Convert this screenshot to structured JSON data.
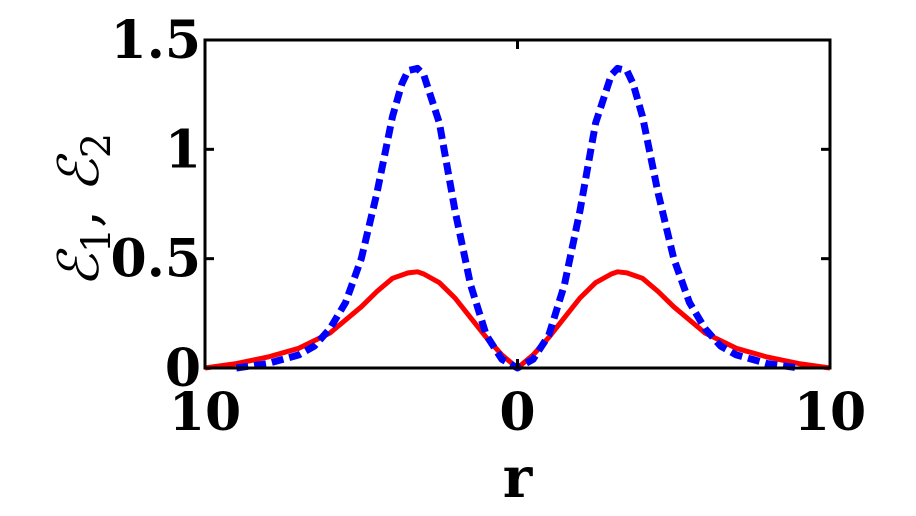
{
  "chart_data": {
    "type": "line",
    "title": "",
    "xlabel": "r",
    "ylabel_parts": [
      "ℰ",
      "1",
      ", ",
      "ℰ",
      "2"
    ],
    "xlim": [
      -10,
      10
    ],
    "ylim": [
      0,
      1.5
    ],
    "xticks": [
      -10,
      0,
      10
    ],
    "xtick_labels": [
      "10",
      "0",
      "10"
    ],
    "yticks": [
      0,
      0.5,
      1,
      1.5
    ],
    "ytick_labels": [
      "0",
      "0.5",
      "1",
      "1.5"
    ],
    "grid": false,
    "series": [
      {
        "color": "#ff0000",
        "style": "solid",
        "x": [
          -10,
          -9,
          -8,
          -7,
          -6,
          -5,
          -4.5,
          -4,
          -3.5,
          -3.2,
          -3,
          -2.5,
          -2,
          -1.5,
          -1,
          -0.5,
          0,
          0.5,
          1,
          1.5,
          2,
          2.5,
          3,
          3.2,
          3.5,
          4,
          4.5,
          5,
          6,
          7,
          8,
          9,
          10
        ],
        "y": [
          0.0,
          0.02,
          0.05,
          0.09,
          0.16,
          0.28,
          0.35,
          0.41,
          0.435,
          0.44,
          0.43,
          0.39,
          0.32,
          0.23,
          0.14,
          0.06,
          0.0,
          0.06,
          0.14,
          0.23,
          0.32,
          0.39,
          0.43,
          0.44,
          0.435,
          0.41,
          0.35,
          0.28,
          0.16,
          0.09,
          0.05,
          0.02,
          0.0
        ]
      },
      {
        "color": "#0000ff",
        "style": "dashed",
        "x": [
          -9,
          -8.5,
          -8,
          -7.5,
          -7,
          -6.5,
          -6,
          -5.5,
          -5,
          -4.5,
          -4,
          -3.7,
          -3.5,
          -3.2,
          -3,
          -2.5,
          -2,
          -1.5,
          -1,
          -0.5,
          0,
          0.5,
          1,
          1.5,
          2,
          2.5,
          3,
          3.2,
          3.5,
          3.7,
          4,
          4.5,
          5,
          5.5,
          6,
          6.5,
          7,
          7.5,
          8,
          8.5,
          9
        ],
        "y": [
          0.0,
          0.01,
          0.02,
          0.04,
          0.06,
          0.1,
          0.18,
          0.3,
          0.5,
          0.8,
          1.15,
          1.3,
          1.36,
          1.37,
          1.34,
          1.12,
          0.72,
          0.38,
          0.15,
          0.04,
          0.0,
          0.04,
          0.15,
          0.38,
          0.72,
          1.12,
          1.34,
          1.37,
          1.36,
          1.3,
          1.15,
          0.8,
          0.5,
          0.3,
          0.18,
          0.1,
          0.06,
          0.04,
          0.02,
          0.01,
          0.0
        ]
      }
    ]
  }
}
